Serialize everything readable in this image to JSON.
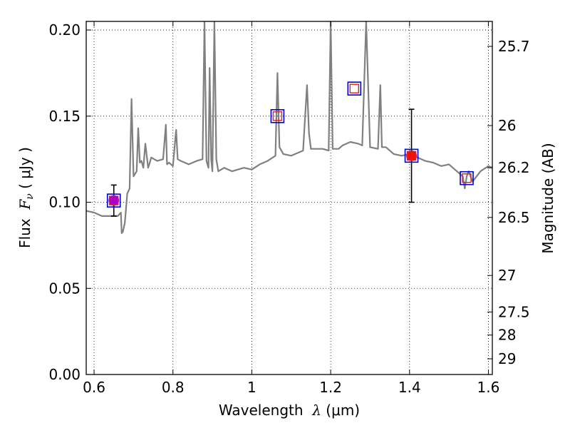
{
  "chart_data": {
    "type": "line",
    "xlabel": {
      "prefix": "Wavelength  ",
      "symbol": "λ",
      "unit": " (μm)"
    },
    "ylabel": {
      "prefix": "Flux  ",
      "symbol": "F",
      "subscript": "ν",
      "unit": " ( μJy )"
    },
    "y2label": "Magnitude (AB)",
    "xlim": [
      0.58,
      1.61
    ],
    "ylim": [
      0.0,
      0.205
    ],
    "grid": true,
    "x_ticks": [
      0.6,
      0.8,
      1.0,
      1.2,
      1.4,
      1.6
    ],
    "x_tick_labels": [
      "0.6",
      "0.8",
      "1",
      "1.2",
      "1.4",
      "1.6"
    ],
    "y_ticks": [
      0.0,
      0.05,
      0.1,
      0.15,
      0.2
    ],
    "y_tick_labels": [
      "0.00",
      "0.05",
      "0.10",
      "0.15",
      "0.20"
    ],
    "y2_ticks": [
      {
        "flux": 0.1905,
        "label": "25.7"
      },
      {
        "flux": 0.1445,
        "label": "26"
      },
      {
        "flux": 0.12,
        "label": "26.2"
      },
      {
        "flux": 0.0912,
        "label": "26.5"
      },
      {
        "flux": 0.0575,
        "label": "27"
      },
      {
        "flux": 0.0363,
        "label": "27.5"
      },
      {
        "flux": 0.0229,
        "label": "28"
      },
      {
        "flux": 0.0091,
        "label": "29"
      }
    ],
    "series": [
      {
        "kind": "model_spectrum",
        "color": "#808080",
        "x": [
          0.58,
          0.6,
          0.62,
          0.635,
          0.66,
          0.668,
          0.67,
          0.673,
          0.678,
          0.684,
          0.69,
          0.695,
          0.7,
          0.708,
          0.712,
          0.716,
          0.72,
          0.725,
          0.73,
          0.737,
          0.74,
          0.745,
          0.76,
          0.775,
          0.782,
          0.785,
          0.79,
          0.8,
          0.808,
          0.812,
          0.82,
          0.84,
          0.86,
          0.875,
          0.88,
          0.885,
          0.89,
          0.893,
          0.897,
          0.9,
          0.905,
          0.91,
          0.915,
          0.93,
          0.95,
          0.98,
          1.0,
          1.02,
          1.04,
          1.06,
          1.065,
          1.07,
          1.08,
          1.1,
          1.13,
          1.14,
          1.145,
          1.15,
          1.18,
          1.195,
          1.2,
          1.205,
          1.22,
          1.23,
          1.25,
          1.27,
          1.28,
          1.29,
          1.3,
          1.32,
          1.326,
          1.33,
          1.34,
          1.36,
          1.38,
          1.4,
          1.42,
          1.44,
          1.46,
          1.48,
          1.5,
          1.52,
          1.535,
          1.54,
          1.545,
          1.55,
          1.56,
          1.58,
          1.6,
          1.61
        ],
        "y": [
          0.095,
          0.094,
          0.092,
          0.092,
          0.092,
          0.094,
          0.082,
          0.083,
          0.088,
          0.105,
          0.108,
          0.16,
          0.115,
          0.118,
          0.143,
          0.123,
          0.124,
          0.12,
          0.134,
          0.12,
          0.122,
          0.126,
          0.124,
          0.125,
          0.145,
          0.122,
          0.123,
          0.121,
          0.142,
          0.125,
          0.124,
          0.122,
          0.124,
          0.125,
          0.205,
          0.124,
          0.12,
          0.178,
          0.125,
          0.118,
          0.205,
          0.125,
          0.118,
          0.12,
          0.118,
          0.12,
          0.119,
          0.122,
          0.124,
          0.127,
          0.175,
          0.132,
          0.128,
          0.127,
          0.13,
          0.168,
          0.14,
          0.131,
          0.131,
          0.13,
          0.205,
          0.131,
          0.131,
          0.133,
          0.135,
          0.134,
          0.133,
          0.205,
          0.132,
          0.131,
          0.168,
          0.132,
          0.132,
          0.128,
          0.127,
          0.128,
          0.126,
          0.124,
          0.123,
          0.121,
          0.122,
          0.118,
          0.115,
          0.108,
          0.115,
          0.118,
          0.112,
          0.118,
          0.121,
          0.12
        ]
      }
    ],
    "points": [
      {
        "kind": "observed",
        "marker": "circle",
        "color": "#aa00cc",
        "x": 0.65,
        "y": 0.101,
        "err": 0.009
      },
      {
        "kind": "observed",
        "marker": "circle",
        "color": "#ee1111",
        "x": 1.405,
        "y": 0.127,
        "err": 0.027
      },
      {
        "kind": "model",
        "marker": "square",
        "color": "#dd2222",
        "x": 0.65,
        "y": 0.101
      },
      {
        "kind": "model",
        "marker": "square",
        "color": "#dd2222",
        "x": 1.065,
        "y": 0.15
      },
      {
        "kind": "model",
        "marker": "square",
        "color": "#dd2222",
        "x": 1.26,
        "y": 0.166
      },
      {
        "kind": "model",
        "marker": "square",
        "color": "#dd2222",
        "x": 1.405,
        "y": 0.127
      },
      {
        "kind": "model",
        "marker": "square",
        "color": "#dd2222",
        "x": 1.545,
        "y": 0.114
      },
      {
        "kind": "synthetic",
        "marker": "square-open",
        "color": "#0000dd",
        "x": 0.65,
        "y": 0.101
      },
      {
        "kind": "synthetic",
        "marker": "square-open",
        "color": "#0000dd",
        "x": 1.065,
        "y": 0.15
      },
      {
        "kind": "synthetic",
        "marker": "square-open",
        "color": "#0000dd",
        "x": 1.26,
        "y": 0.166
      },
      {
        "kind": "synthetic",
        "marker": "square-open",
        "color": "#0000dd",
        "x": 1.405,
        "y": 0.127
      },
      {
        "kind": "synthetic",
        "marker": "square-open",
        "color": "#0000dd",
        "x": 1.545,
        "y": 0.114
      }
    ]
  }
}
